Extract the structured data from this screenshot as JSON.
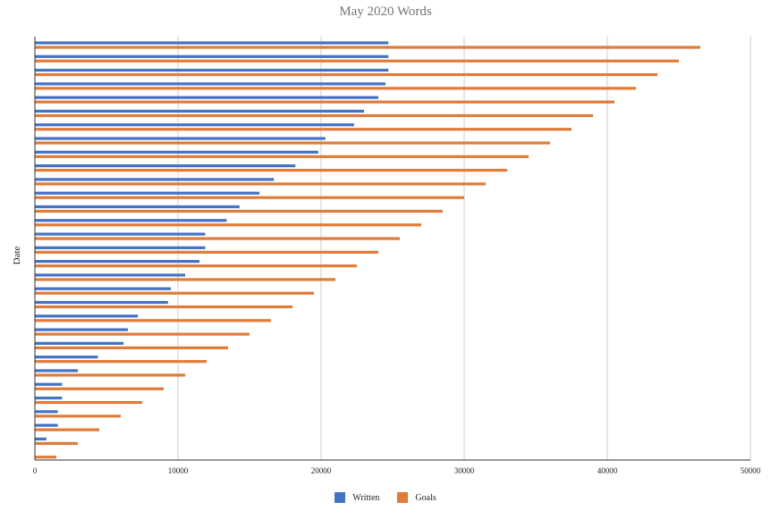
{
  "chart_data": {
    "type": "bar",
    "orientation": "horizontal",
    "title": "May 2020 Words",
    "xlabel": "",
    "ylabel": "Date",
    "xlim": [
      0,
      50000
    ],
    "xticks": [
      0,
      10000,
      20000,
      30000,
      40000,
      50000
    ],
    "grid": "vertical",
    "legend_position": "bottom",
    "series": [
      {
        "name": "Written",
        "color": "#4472c4",
        "values": [
          24700,
          24700,
          24700,
          24500,
          24000,
          23000,
          22300,
          20300,
          19800,
          18200,
          16700,
          15700,
          14300,
          13400,
          11900,
          11900,
          11500,
          10500,
          9500,
          9300,
          7200,
          6500,
          6200,
          4400,
          3000,
          1900,
          1900,
          1600,
          1600,
          800,
          0
        ]
      },
      {
        "name": "Goals",
        "color": "#e07b39",
        "values": [
          46500,
          45000,
          43500,
          42000,
          40500,
          39000,
          37500,
          36000,
          34500,
          33000,
          31500,
          30000,
          28500,
          27000,
          25500,
          24000,
          22500,
          21000,
          19500,
          18000,
          16500,
          15000,
          13500,
          12000,
          10500,
          9000,
          7500,
          6000,
          4500,
          3000,
          1500
        ]
      }
    ]
  }
}
